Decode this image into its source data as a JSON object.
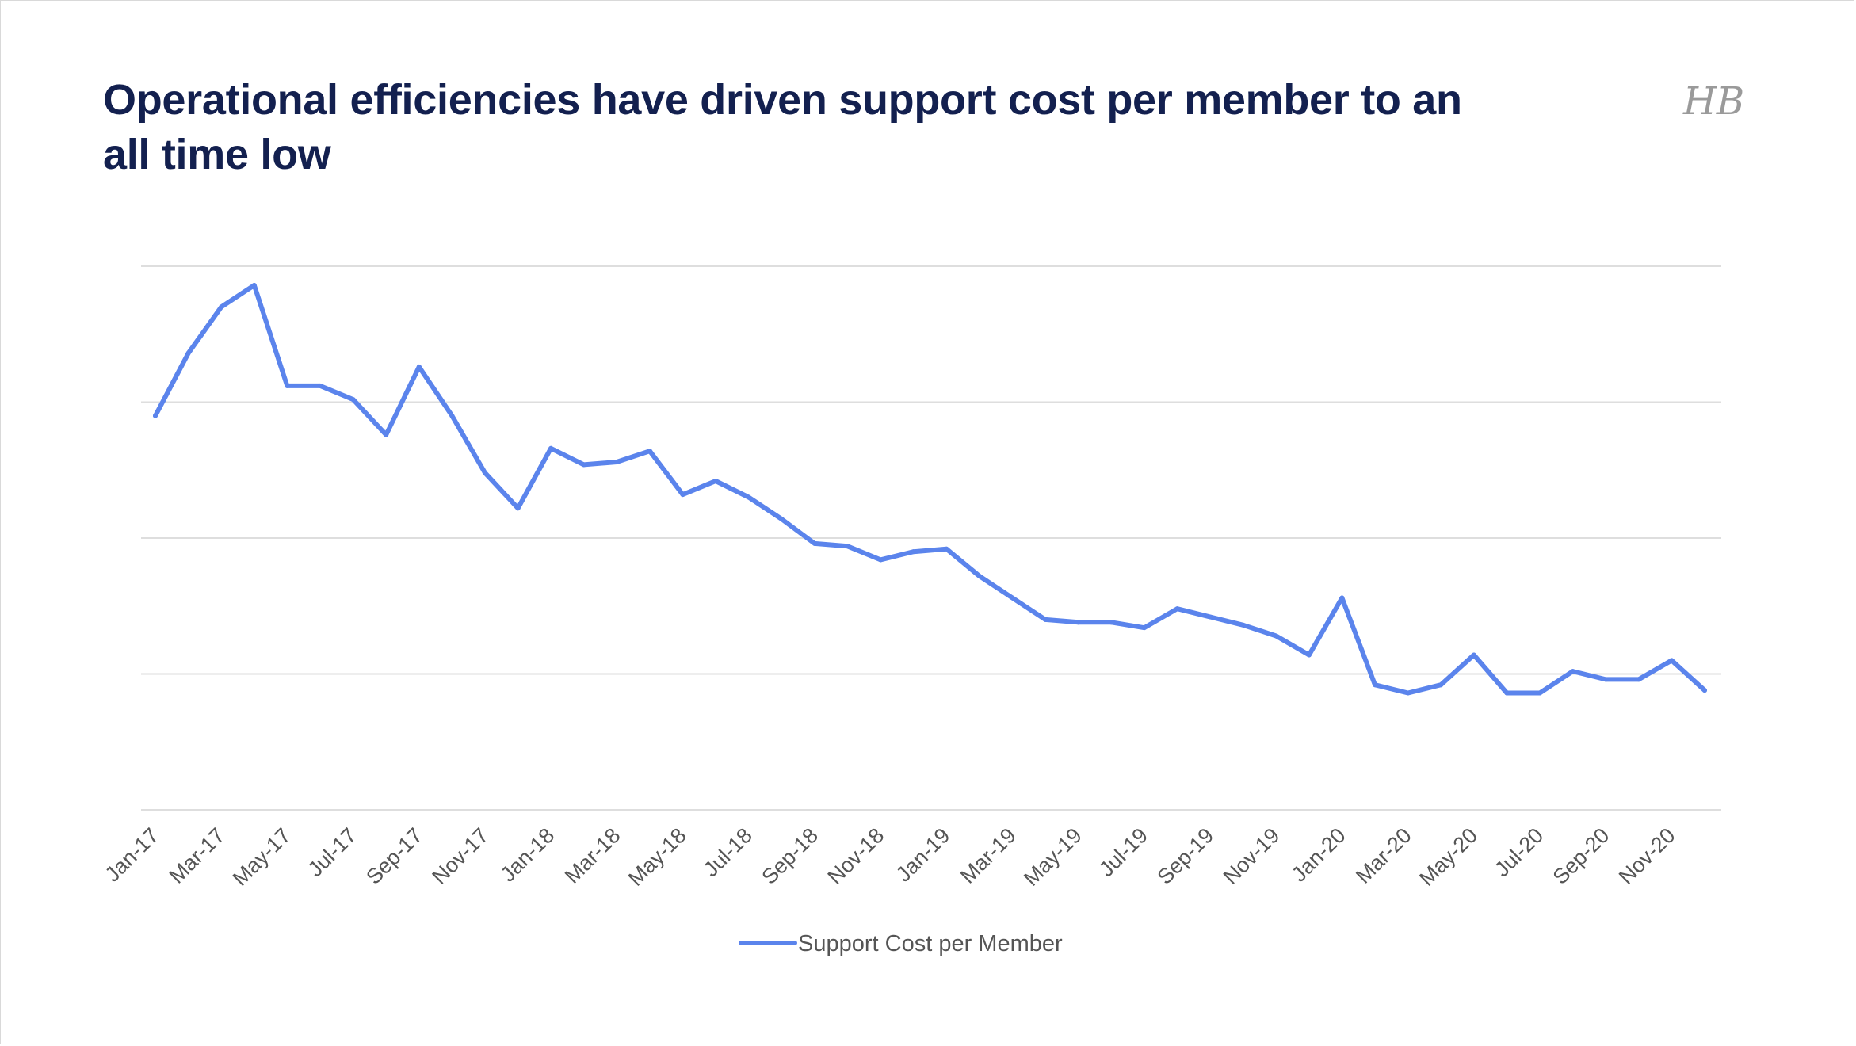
{
  "title": "Operational efficiencies have driven support cost per member to an all time low",
  "logo_text": "HB",
  "colors": {
    "title": "#13204f",
    "series": "#5b84ec",
    "grid": "#dedede",
    "tick": "#555555"
  },
  "chart_data": {
    "type": "line",
    "title": "",
    "xlabel": "",
    "ylabel": "",
    "y_tick_labels_visible": false,
    "grid": true,
    "legend": "bottom-center",
    "ylim": [
      0,
      100
    ],
    "categories": [
      "Jan-17",
      "Feb-17",
      "Mar-17",
      "Apr-17",
      "May-17",
      "Jun-17",
      "Jul-17",
      "Aug-17",
      "Sep-17",
      "Oct-17",
      "Nov-17",
      "Dec-17",
      "Jan-18",
      "Feb-18",
      "Mar-18",
      "Apr-18",
      "May-18",
      "Jun-18",
      "Jul-18",
      "Aug-18",
      "Sep-18",
      "Oct-18",
      "Nov-18",
      "Dec-18",
      "Jan-19",
      "Feb-19",
      "Mar-19",
      "Apr-19",
      "May-19",
      "Jun-19",
      "Jul-19",
      "Aug-19",
      "Sep-19",
      "Oct-19",
      "Nov-19",
      "Dec-19",
      "Jan-20",
      "Feb-20",
      "Mar-20",
      "Apr-20",
      "May-20",
      "Jun-20",
      "Jul-20",
      "Aug-20",
      "Sep-20",
      "Oct-20",
      "Nov-20",
      "Dec-20"
    ],
    "tick_labels": [
      "Jan-17",
      "Mar-17",
      "May-17",
      "Jul-17",
      "Sep-17",
      "Nov-17",
      "Jan-18",
      "Mar-18",
      "May-18",
      "Jul-18",
      "Sep-18",
      "Nov-18",
      "Jan-19",
      "Mar-19",
      "May-19",
      "Jul-19",
      "Sep-19",
      "Nov-19",
      "Jan-20",
      "Mar-20",
      "May-20",
      "Jul-20",
      "Sep-20",
      "Nov-20"
    ],
    "series": [
      {
        "name": "Support Cost per Member",
        "values": [
          72.5,
          84,
          92.5,
          96.5,
          78,
          78,
          75.5,
          69,
          81.5,
          72.5,
          62,
          55.5,
          66.5,
          63.5,
          64,
          66,
          58,
          60.5,
          57.5,
          53.5,
          49,
          48.5,
          46,
          47.5,
          48,
          43,
          39,
          35,
          34.5,
          34.5,
          33.5,
          37,
          35.5,
          34,
          32,
          28.5,
          39,
          23,
          21.5,
          23,
          28.5,
          21.5,
          21.5,
          25.5,
          24,
          24,
          27.5,
          22
        ]
      }
    ]
  }
}
